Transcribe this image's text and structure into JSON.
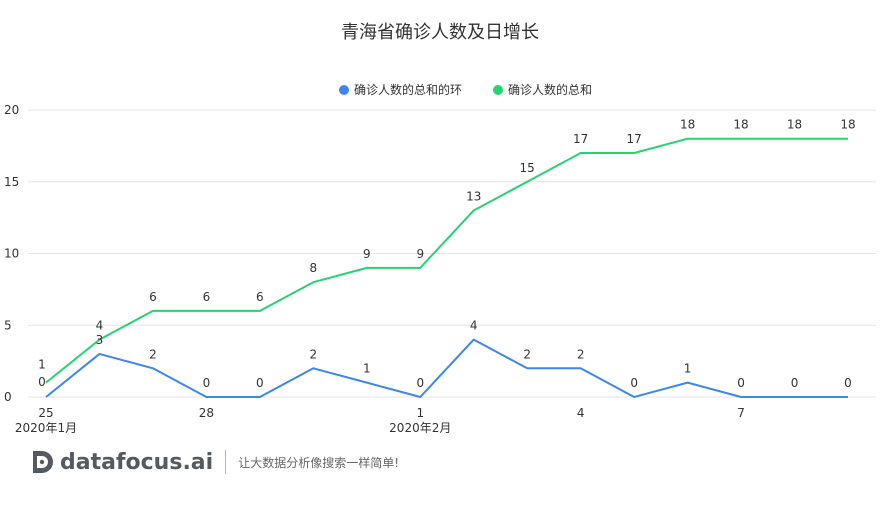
{
  "chart_data": {
    "type": "line",
    "title": "青海省确诊人数及日增长",
    "xlabel": "",
    "ylabel": "",
    "ylim": [
      0,
      20
    ],
    "yticks": [
      0,
      5,
      10,
      15,
      20
    ],
    "grid": true,
    "legend_position": "top-center",
    "x": [
      "2020-01-25",
      "2020-01-26",
      "2020-01-27",
      "2020-01-28",
      "2020-01-29",
      "2020-01-30",
      "2020-01-31",
      "2020-02-01",
      "2020-02-02",
      "2020-02-03",
      "2020-02-04",
      "2020-02-05",
      "2020-02-06",
      "2020-02-07",
      "2020-02-08",
      "2020-02-09"
    ],
    "x_tick_labels": [
      {
        "index": 0,
        "label": "25",
        "sublabel": "2020年1月"
      },
      {
        "index": 3,
        "label": "28",
        "sublabel": ""
      },
      {
        "index": 7,
        "label": "1",
        "sublabel": "2020年2月"
      },
      {
        "index": 10,
        "label": "4",
        "sublabel": ""
      },
      {
        "index": 13,
        "label": "7",
        "sublabel": ""
      }
    ],
    "series": [
      {
        "name": "确诊人数的总和的环",
        "color": "#3f86ec",
        "values": [
          0,
          3,
          2,
          0,
          0,
          2,
          1,
          0,
          4,
          2,
          2,
          0,
          1,
          0,
          0,
          0
        ]
      },
      {
        "name": "确诊人数的总和",
        "color": "#28d171",
        "values": [
          1,
          4,
          6,
          6,
          6,
          8,
          9,
          9,
          13,
          15,
          17,
          17,
          18,
          18,
          18,
          18
        ]
      }
    ]
  },
  "footer": {
    "brand": "datafocus.ai",
    "slogan": "让大数据分析像搜索一样简单!"
  }
}
